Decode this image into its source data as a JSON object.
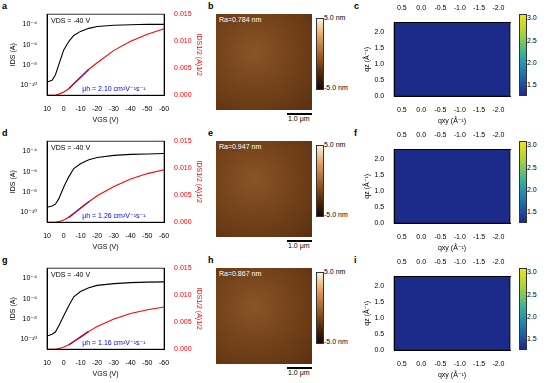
{
  "chart_data": [
    {
      "panel": "a",
      "type": "line",
      "annotations": [
        "VDS = -40 V",
        "μh = 2.10 cm²V⁻¹s⁻¹"
      ],
      "x_label": "VGS (V)",
      "y_label": "IDS (A)",
      "y2_label": "IDS1/2 (A)1/2",
      "log": "y",
      "grid": false,
      "xlim": [
        10,
        -60
      ],
      "xticks": [
        10,
        0,
        -10,
        -20,
        -30,
        -40,
        -50,
        -60
      ],
      "ylim": [
        1e-11,
        0.001
      ],
      "yticks": [
        {
          "value": 0.0001,
          "label": "10⁻⁴"
        },
        {
          "value": 1e-06,
          "label": "10⁻⁶"
        },
        {
          "value": 1e-08,
          "label": "10⁻⁸"
        },
        {
          "value": 1e-10,
          "label": "10⁻¹⁰"
        }
      ],
      "y2lim": [
        0,
        0.015
      ],
      "y2ticks": [
        {
          "value": 0,
          "label": "0.000"
        },
        {
          "value": 0.005,
          "label": "0.005"
        },
        {
          "value": 0.01,
          "label": "0.010"
        },
        {
          "value": 0.015,
          "label": "0.015"
        }
      ],
      "x": [
        10,
        7,
        5,
        3,
        0,
        -3,
        -6,
        -10,
        -15,
        -20,
        -30,
        -40,
        -50,
        -60
      ],
      "series": [
        {
          "color": "#000000",
          "values": [
            2e-10,
            3e-10,
            1e-09,
            1e-08,
            3e-07,
            2e-06,
            8e-06,
            2e-05,
            4e-05,
            6e-05,
            8e-05,
            9e-05,
            0.0001,
            0.0001
          ]
        },
        {
          "color": "#ff0000",
          "axis": "y2",
          "values": [
            0,
            0,
            0,
            0.0002,
            0.0006,
            0.0012,
            0.0021,
            0.0033,
            0.0048,
            0.006,
            0.0083,
            0.01,
            0.0113,
            0.0123
          ]
        },
        {
          "color": "#0000ff",
          "axis": "y2",
          "values": [
            null,
            null,
            null,
            null,
            null,
            0.0012,
            0.0021,
            0.0033,
            0.0048,
            null,
            null,
            null,
            null,
            null
          ]
        }
      ]
    },
    {
      "panel": "d",
      "type": "line",
      "annotations": [
        "VDS = -40 V",
        "μh = 1.26 cm²V⁻¹s⁻¹"
      ],
      "x_label": "VGS (V)",
      "y_label": "IDS (A)",
      "y2_label": "IDS1/2 (A)1/2",
      "log": "y",
      "grid": false,
      "xlim": [
        10,
        -60
      ],
      "xticks": [
        10,
        0,
        -10,
        -20,
        -30,
        -40,
        -50,
        -60
      ],
      "ylim": [
        1e-11,
        0.001
      ],
      "yticks": [
        {
          "value": 0.0001,
          "label": "10⁻⁴"
        },
        {
          "value": 1e-06,
          "label": "10⁻⁶"
        },
        {
          "value": 1e-08,
          "label": "10⁻⁸"
        },
        {
          "value": 1e-10,
          "label": "10⁻¹⁰"
        }
      ],
      "y2lim": [
        0,
        0.015
      ],
      "y2ticks": [
        {
          "value": 0,
          "label": "0.000"
        },
        {
          "value": 0.005,
          "label": "0.005"
        },
        {
          "value": 0.01,
          "label": "0.010"
        },
        {
          "value": 0.015,
          "label": "0.015"
        }
      ],
      "x": [
        10,
        7,
        5,
        3,
        0,
        -3,
        -6,
        -10,
        -15,
        -20,
        -30,
        -40,
        -50,
        -60
      ],
      "series": [
        {
          "color": "#000000",
          "values": [
            3e-10,
            4e-10,
            6e-10,
            2e-09,
            3e-08,
            3e-07,
            2e-06,
            6e-06,
            1.5e-05,
            2.5e-05,
            4e-05,
            5e-05,
            5.5e-05,
            6e-05
          ]
        },
        {
          "color": "#ff0000",
          "axis": "y2",
          "values": [
            0,
            0,
            0,
            0.0001,
            0.0004,
            0.0009,
            0.0016,
            0.0026,
            0.0038,
            0.0049,
            0.0066,
            0.008,
            0.009,
            0.0097
          ]
        },
        {
          "color": "#0000ff",
          "axis": "y2",
          "values": [
            null,
            null,
            null,
            null,
            null,
            0.0009,
            0.00162,
            0.00258,
            0.0038,
            null,
            null,
            null,
            null,
            null
          ]
        }
      ]
    },
    {
      "panel": "g",
      "type": "line",
      "annotations": [
        "VDS = -40 V",
        "μh = 1.16 cm²V⁻¹s⁻¹"
      ],
      "x_label": "VGS (V)",
      "y_label": "IDS (A)",
      "y2_label": "IDS1/2 (A)1/2",
      "log": "y",
      "grid": false,
      "xlim": [
        10,
        -60
      ],
      "xticks": [
        10,
        0,
        -10,
        -20,
        -30,
        -40,
        -50,
        -60
      ],
      "ylim": [
        1e-11,
        0.001
      ],
      "yticks": [
        {
          "value": 0.0001,
          "label": "10⁻⁴"
        },
        {
          "value": 1e-06,
          "label": "10⁻⁶"
        },
        {
          "value": 1e-08,
          "label": "10⁻⁸"
        },
        {
          "value": 1e-10,
          "label": "10⁻¹⁰"
        }
      ],
      "y2lim": [
        0,
        0.015
      ],
      "y2ticks": [
        {
          "value": 0,
          "label": "0.000"
        },
        {
          "value": 0.005,
          "label": "0.005"
        },
        {
          "value": 0.01,
          "label": "0.010"
        },
        {
          "value": 0.015,
          "label": "0.015"
        }
      ],
      "x": [
        10,
        7,
        5,
        3,
        0,
        -3,
        -6,
        -10,
        -15,
        -20,
        -30,
        -40,
        -50,
        -60
      ],
      "series": [
        {
          "color": "#000000",
          "values": [
            2e-10,
            3e-10,
            5e-10,
            2e-09,
            2e-08,
            2e-07,
            1.5e-06,
            5e-06,
            1.2e-05,
            2e-05,
            3e-05,
            3.8e-05,
            4.2e-05,
            4.5e-05
          ]
        },
        {
          "color": "#ff0000",
          "axis": "y2",
          "values": [
            0,
            0,
            0,
            0.0001,
            0.0004,
            0.0008,
            0.0014,
            0.0023,
            0.0033,
            0.0042,
            0.0056,
            0.0066,
            0.0073,
            0.0078
          ]
        },
        {
          "color": "#0000ff",
          "axis": "y2",
          "values": [
            null,
            null,
            null,
            null,
            null,
            0.0008,
            0.00142,
            0.00225,
            0.0033,
            null,
            null,
            null,
            null,
            null
          ]
        }
      ]
    },
    {
      "panel": "c",
      "type": "image",
      "x_label": "qxy (Å⁻¹)",
      "y_label": "qz (Å⁻¹)",
      "grid": false,
      "xlim": [
        0.7,
        -2.3
      ],
      "xticks": [
        0.5,
        {
          "value": 0,
          "label": "0.0"
        },
        -0.5,
        {
          "value": -1,
          "label": "-1.0"
        },
        -1.5,
        {
          "value": -2,
          "label": "-2.0"
        }
      ],
      "ylim": [
        0,
        2.3
      ],
      "yticks": [
        {
          "value": 0,
          "label": "0.0"
        },
        0.5,
        {
          "value": 1,
          "label": "1.0"
        },
        1.5,
        {
          "value": 2,
          "label": "2.0"
        }
      ],
      "colorbar": {
        "range": [
          1.3,
          3.1
        ],
        "ticks": [
          1.5,
          {
            "value": 2,
            "label": "2.0"
          },
          2.5,
          {
            "value": 3,
            "label": "3.0"
          }
        ]
      }
    },
    {
      "panel": "f",
      "type": "image",
      "x_label": "qxy (Å⁻¹)",
      "y_label": "qz (Å⁻¹)",
      "grid": false,
      "xlim": [
        0.7,
        -2.3
      ],
      "xticks": [
        0.5,
        {
          "value": 0,
          "label": "0.0"
        },
        -0.5,
        {
          "value": -1,
          "label": "-1.0"
        },
        -1.5,
        {
          "value": -2,
          "label": "-2.0"
        }
      ],
      "ylim": [
        0,
        2.3
      ],
      "yticks": [
        {
          "value": 0,
          "label": "0.0"
        },
        0.5,
        {
          "value": 1,
          "label": "1.0"
        },
        1.5,
        {
          "value": 2,
          "label": "2.0"
        }
      ],
      "colorbar": {
        "range": [
          1.3,
          3.1
        ],
        "ticks": [
          1.5,
          {
            "value": 2,
            "label": "2.0"
          },
          2.5,
          {
            "value": 3,
            "label": "3.0"
          }
        ]
      }
    },
    {
      "panel": "i",
      "type": "image",
      "x_label": "qxy (Å⁻¹)",
      "y_label": "qz (Å⁻¹)",
      "grid": false,
      "xlim": [
        0.7,
        -2.3
      ],
      "xticks": [
        0.5,
        {
          "value": 0,
          "label": "0.0"
        },
        -0.5,
        {
          "value": -1,
          "label": "-1.0"
        },
        -1.5,
        {
          "value": -2,
          "label": "-2.0"
        }
      ],
      "ylim": [
        0,
        2.3
      ],
      "yticks": [
        {
          "value": 0,
          "label": "0.0"
        },
        0.5,
        {
          "value": 1,
          "label": "1.0"
        },
        1.5,
        {
          "value": 2,
          "label": "2.0"
        }
      ],
      "colorbar": {
        "range": [
          1.3,
          3.1
        ],
        "ticks": [
          1.5,
          {
            "value": 2,
            "label": "2.0"
          },
          2.5,
          {
            "value": 3,
            "label": "3.0"
          }
        ]
      }
    }
  ],
  "afm_images": [
    {
      "panel": "b",
      "annotation": "Ra=0.784 nm",
      "scale_bar": "1.0 μm",
      "colorbar": {
        "range": [
          -5,
          5
        ],
        "ticks": [
          {
            "value": 5,
            "label": "5.0 nm"
          },
          {
            "value": -5,
            "label": "-5.0 nm"
          }
        ]
      }
    },
    {
      "panel": "e",
      "annotation": "Ra=0.947 nm",
      "scale_bar": "1.0 μm",
      "colorbar": {
        "range": [
          -5,
          5
        ],
        "ticks": [
          {
            "value": 5,
            "label": "5.0 nm"
          },
          {
            "value": -5,
            "label": "-5.0 nm"
          }
        ]
      }
    },
    {
      "panel": "h",
      "annotation": "Ra=0.867 nm",
      "scale_bar": "1.0 μm",
      "colorbar": {
        "range": [
          -5,
          5
        ],
        "ticks": [
          {
            "value": 5,
            "label": "5.0 nm"
          },
          {
            "value": -5,
            "label": "-5.0 nm"
          }
        ]
      }
    }
  ]
}
